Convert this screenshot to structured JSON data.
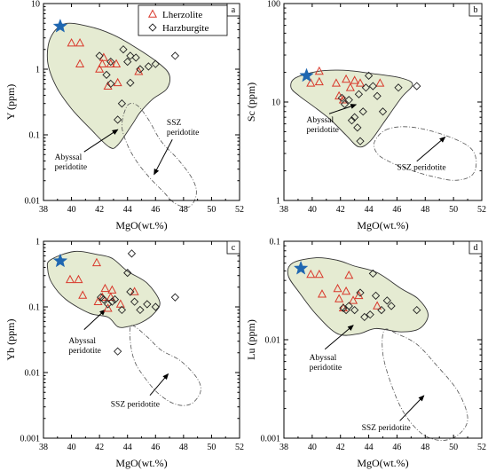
{
  "colors": {
    "abyssal_fill": "#e5ebd2",
    "outline": "#333333",
    "lherzolite": "#d9382b",
    "harzburgite": "#222222",
    "star": "#1f67b1"
  },
  "legend": {
    "lherzolite": "Lherzolite",
    "harzburgite": "Harzburgite"
  },
  "chart_data": [
    {
      "type": "scatter",
      "panel": "a",
      "xlabel": "MgO(wt.%)",
      "ylabel": "Y (ppm)",
      "xlim": [
        38,
        52
      ],
      "ylim": [
        0.01,
        10
      ],
      "yscale": "log",
      "xticks": [
        "38",
        "40",
        "42",
        "44",
        "46",
        "48",
        "50",
        "52"
      ],
      "yticks": [
        "0.01",
        "0.1",
        "1",
        "10"
      ],
      "annotations": [
        "Abyssal peridotite",
        "SSZ peridotite"
      ],
      "series": [
        {
          "name": "Lherzolite",
          "marker": "triangle",
          "points": [
            [
              40.0,
              2.5
            ],
            [
              40.6,
              2.5
            ],
            [
              40.6,
              1.2
            ],
            [
              42.0,
              1.0
            ],
            [
              42.2,
              1.2
            ],
            [
              42.3,
              1.5
            ],
            [
              42.6,
              0.55
            ],
            [
              42.8,
              1.2
            ],
            [
              43.2,
              1.2
            ],
            [
              43.3,
              0.62
            ],
            [
              44.8,
              0.92
            ]
          ]
        },
        {
          "name": "Harzburgite",
          "marker": "diamond",
          "points": [
            [
              42.0,
              1.6
            ],
            [
              42.5,
              0.82
            ],
            [
              42.8,
              1.3
            ],
            [
              42.8,
              0.6
            ],
            [
              43.3,
              0.17
            ],
            [
              43.6,
              0.3
            ],
            [
              43.7,
              2.0
            ],
            [
              44.0,
              1.3
            ],
            [
              44.2,
              1.6
            ],
            [
              44.2,
              0.62
            ],
            [
              44.6,
              1.5
            ],
            [
              44.9,
              1.0
            ],
            [
              45.5,
              1.1
            ],
            [
              46.0,
              1.2
            ],
            [
              47.4,
              1.6
            ]
          ]
        },
        {
          "name": "",
          "marker": "star",
          "points": [
            [
              39.2,
              4.5
            ]
          ]
        }
      ]
    },
    {
      "type": "scatter",
      "panel": "b",
      "xlabel": "MgO(wt.%)",
      "ylabel": "Sc (ppm)",
      "xlim": [
        38,
        52
      ],
      "ylim": [
        1,
        100
      ],
      "yscale": "log",
      "xticks": [
        "38",
        "40",
        "42",
        "44",
        "46",
        "48",
        "50",
        "52"
      ],
      "yticks": [
        "1",
        "10",
        "100"
      ],
      "annotations": [
        "Abyssal peridotite",
        "SSZ peridotite"
      ],
      "series": [
        {
          "name": "Lherzolite",
          "marker": "triangle",
          "points": [
            [
              39.9,
              15.5
            ],
            [
              40.5,
              16.0
            ],
            [
              40.5,
              20.5
            ],
            [
              41.7,
              15.5
            ],
            [
              41.9,
              11.5
            ],
            [
              42.2,
              10.5
            ],
            [
              42.4,
              17.0
            ],
            [
              42.7,
              14.0
            ],
            [
              43.0,
              16.5
            ],
            [
              43.4,
              15.5
            ],
            [
              44.8,
              15.5
            ]
          ]
        },
        {
          "name": "Harzburgite",
          "marker": "diamond",
          "points": [
            [
              42.1,
              11.0
            ],
            [
              42.3,
              9.5
            ],
            [
              42.6,
              10.5
            ],
            [
              42.8,
              6.5
            ],
            [
              43.0,
              7.0
            ],
            [
              43.2,
              5.5
            ],
            [
              43.3,
              12.0
            ],
            [
              43.4,
              4.0
            ],
            [
              43.6,
              8.0
            ],
            [
              43.8,
              14.0
            ],
            [
              44.0,
              18.5
            ],
            [
              44.3,
              14.5
            ],
            [
              44.6,
              11.5
            ],
            [
              45.0,
              8.0
            ],
            [
              46.1,
              14.0
            ],
            [
              47.4,
              14.5
            ]
          ]
        },
        {
          "name": "",
          "marker": "star",
          "points": [
            [
              39.6,
              18.5
            ]
          ]
        }
      ]
    },
    {
      "type": "scatter",
      "panel": "c",
      "xlabel": "MgO(wt.%)",
      "ylabel": "Yb (ppm)",
      "xlim": [
        38,
        52
      ],
      "ylim": [
        0.001,
        1
      ],
      "yscale": "log",
      "xticks": [
        "38",
        "40",
        "42",
        "44",
        "46",
        "48",
        "50",
        "52"
      ],
      "yticks": [
        "0.001",
        "0.01",
        "0.1",
        "1"
      ],
      "annotations": [
        "Abyssal peridotite",
        "SSZ peridotite"
      ],
      "series": [
        {
          "name": "Lherzolite",
          "marker": "triangle",
          "points": [
            [
              39.9,
              0.26
            ],
            [
              40.5,
              0.26
            ],
            [
              40.8,
              0.15
            ],
            [
              41.8,
              0.47
            ],
            [
              41.9,
              0.12
            ],
            [
              42.2,
              0.14
            ],
            [
              42.4,
              0.19
            ],
            [
              42.6,
              0.095
            ],
            [
              42.8,
              0.14
            ],
            [
              42.9,
              0.18
            ],
            [
              43.5,
              0.11
            ],
            [
              44.5,
              0.17
            ]
          ]
        },
        {
          "name": "Harzburgite",
          "marker": "diamond",
          "points": [
            [
              42.1,
              0.14
            ],
            [
              42.3,
              0.13
            ],
            [
              42.6,
              0.11
            ],
            [
              42.9,
              0.12
            ],
            [
              43.1,
              0.13
            ],
            [
              43.3,
              0.021
            ],
            [
              43.6,
              0.09
            ],
            [
              44.0,
              0.33
            ],
            [
              44.2,
              0.17
            ],
            [
              44.3,
              0.65
            ],
            [
              44.5,
              0.12
            ],
            [
              44.9,
              0.09
            ],
            [
              45.4,
              0.11
            ],
            [
              46.0,
              0.1
            ],
            [
              47.4,
              0.14
            ]
          ]
        },
        {
          "name": "",
          "marker": "star",
          "points": [
            [
              39.2,
              0.5
            ]
          ]
        }
      ]
    },
    {
      "type": "scatter",
      "panel": "d",
      "xlabel": "MgO(wt.%)",
      "ylabel": "Lu (ppm)",
      "xlim": [
        38,
        52
      ],
      "ylim": [
        0.001,
        0.1
      ],
      "yscale": "log",
      "xticks": [
        "38",
        "40",
        "42",
        "44",
        "46",
        "48",
        "50",
        "52"
      ],
      "yticks": [
        "0.001",
        "0.01",
        "0.1"
      ],
      "annotations": [
        "Abyssal peridotite",
        "SSZ peridotite"
      ],
      "series": [
        {
          "name": "Lherzolite",
          "marker": "triangle",
          "points": [
            [
              39.9,
              0.046
            ],
            [
              40.5,
              0.046
            ],
            [
              40.7,
              0.029
            ],
            [
              41.8,
              0.033
            ],
            [
              41.9,
              0.026
            ],
            [
              42.2,
              0.021
            ],
            [
              42.4,
              0.031
            ],
            [
              42.6,
              0.045
            ],
            [
              42.9,
              0.025
            ],
            [
              43.3,
              0.028
            ],
            [
              44.6,
              0.022
            ]
          ]
        },
        {
          "name": "Harzburgite",
          "marker": "diamond",
          "points": [
            [
              42.2,
              0.021
            ],
            [
              42.4,
              0.02
            ],
            [
              42.6,
              0.022
            ],
            [
              43.0,
              0.02
            ],
            [
              43.4,
              0.03
            ],
            [
              43.7,
              0.017
            ],
            [
              44.1,
              0.018
            ],
            [
              44.3,
              0.047
            ],
            [
              44.5,
              0.028
            ],
            [
              44.9,
              0.02
            ],
            [
              45.3,
              0.025
            ],
            [
              45.6,
              0.022
            ],
            [
              47.4,
              0.02
            ]
          ]
        },
        {
          "name": "",
          "marker": "star",
          "points": [
            [
              39.2,
              0.053
            ]
          ]
        }
      ]
    }
  ]
}
